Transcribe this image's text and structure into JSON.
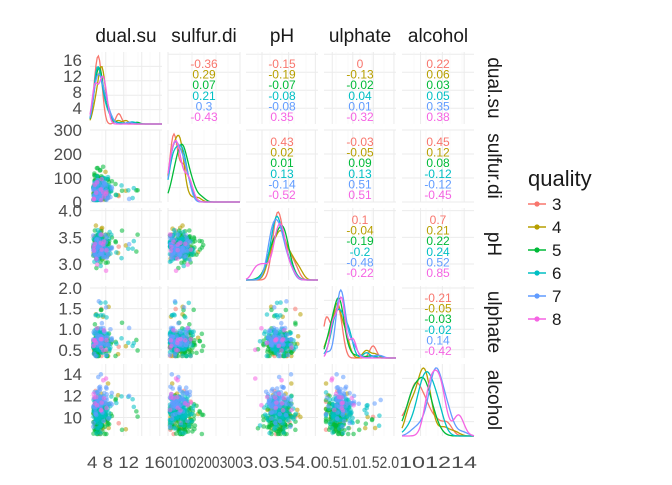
{
  "chart_data": {
    "type": "scatter",
    "layout": "pairs-matrix",
    "variables": [
      "dual.su",
      "sulfur.di",
      "pH",
      "ulphate",
      "alcohol"
    ],
    "column_labels": [
      "dual.su",
      "sulfur.di",
      "pH",
      "ulphate",
      "alcohol"
    ],
    "row_labels": [
      "dual.su",
      "sulfur.di",
      "pH",
      "ulphate",
      "alcohol"
    ],
    "axes": [
      {
        "range": [
          0.5,
          16.5
        ],
        "tick_values": [
          4,
          8,
          12,
          16
        ],
        "y_tick_labels": [
          "4",
          "8",
          "12",
          "16"
        ],
        "x_tick_labels": [
          "4",
          "8",
          "12",
          "16"
        ]
      },
      {
        "range": [
          0,
          300
        ],
        "tick_values": [
          0,
          100,
          200,
          300
        ],
        "y_tick_labels": [
          "0",
          "100",
          "200",
          "300"
        ],
        "x_tick_labels": [
          "0",
          "100",
          "200",
          "300"
        ]
      },
      {
        "range": [
          2.7,
          4.05
        ],
        "tick_values": [
          3.0,
          3.5,
          4.0
        ],
        "y_tick_labels": [
          "3.0",
          "3.5",
          "4.0"
        ],
        "x_tick_labels": [
          "3.0",
          "3.5",
          "4.0"
        ]
      },
      {
        "range": [
          0.3,
          2.05
        ],
        "tick_values": [
          0.5,
          1.0,
          1.5,
          2.0
        ],
        "y_tick_labels": [
          "0.5",
          "1.0",
          "1.5",
          "2.0"
        ],
        "x_tick_labels": [
          "0.5",
          "1.0",
          "1.5",
          "2.0"
        ]
      },
      {
        "range": [
          8.3,
          14.9
        ],
        "tick_values": [
          10,
          12,
          14
        ],
        "y_tick_labels": [
          "10",
          "12",
          "14"
        ],
        "x_tick_labels": [
          "10",
          "12",
          "14"
        ]
      }
    ],
    "x_tick_labels_printed": [
      "4 8 12 16",
      "0100200300",
      "3.03.54.0",
      "0.51.01.52.0",
      "101214"
    ],
    "legend": {
      "title": "quality",
      "position": "right",
      "entries": [
        {
          "label": "3",
          "color": "#F8766D"
        },
        {
          "label": "4",
          "color": "#B79F00"
        },
        {
          "label": "5",
          "color": "#00BA38"
        },
        {
          "label": "6",
          "color": "#00BFC4"
        },
        {
          "label": "7",
          "color": "#619CFF"
        },
        {
          "label": "8",
          "color": "#F564E3"
        }
      ]
    },
    "correlations": {
      "dual.su|sulfur.di": [
        "-0.36",
        "0.29",
        "0.07",
        "0.21",
        "0.3",
        "-0.43"
      ],
      "dual.su|pH": [
        "-0.15",
        "-0.19",
        "-0.07",
        "-0.08",
        "-0.08",
        "0.35"
      ],
      "dual.su|ulphate": [
        "0",
        "-0.13",
        "-0.02",
        "0.04",
        "0.01",
        "-0.32"
      ],
      "dual.su|alcohol": [
        "0.22",
        "0.06",
        "0.03",
        "0.05",
        "0.35",
        "0.38"
      ],
      "sulfur.di|pH": [
        "0.43",
        "0.02",
        "0.01",
        "0.13",
        "-0.14",
        "-0.52"
      ],
      "sulfur.di|ulphate": [
        "-0.03",
        "-0.05",
        "0.09",
        "0.13",
        "0.51",
        "0.51"
      ],
      "sulfur.di|alcohol": [
        "0.45",
        "0.12",
        "0.08",
        "-0.12",
        "-0.12",
        "-0.45"
      ],
      "pH|ulphate": [
        "0.1",
        "-0.04",
        "-0.19",
        "-0.2",
        "-0.48",
        "-0.22"
      ],
      "pH|alcohol": [
        "0.7",
        "0.21",
        "0.22",
        "0.24",
        "0.52",
        "0.85"
      ],
      "ulphate|alcohol": [
        "-0.21",
        "-0.05",
        "-0.03",
        "-0.02",
        "0.14",
        "-0.42"
      ]
    },
    "grid": true,
    "theme": "minimal"
  }
}
